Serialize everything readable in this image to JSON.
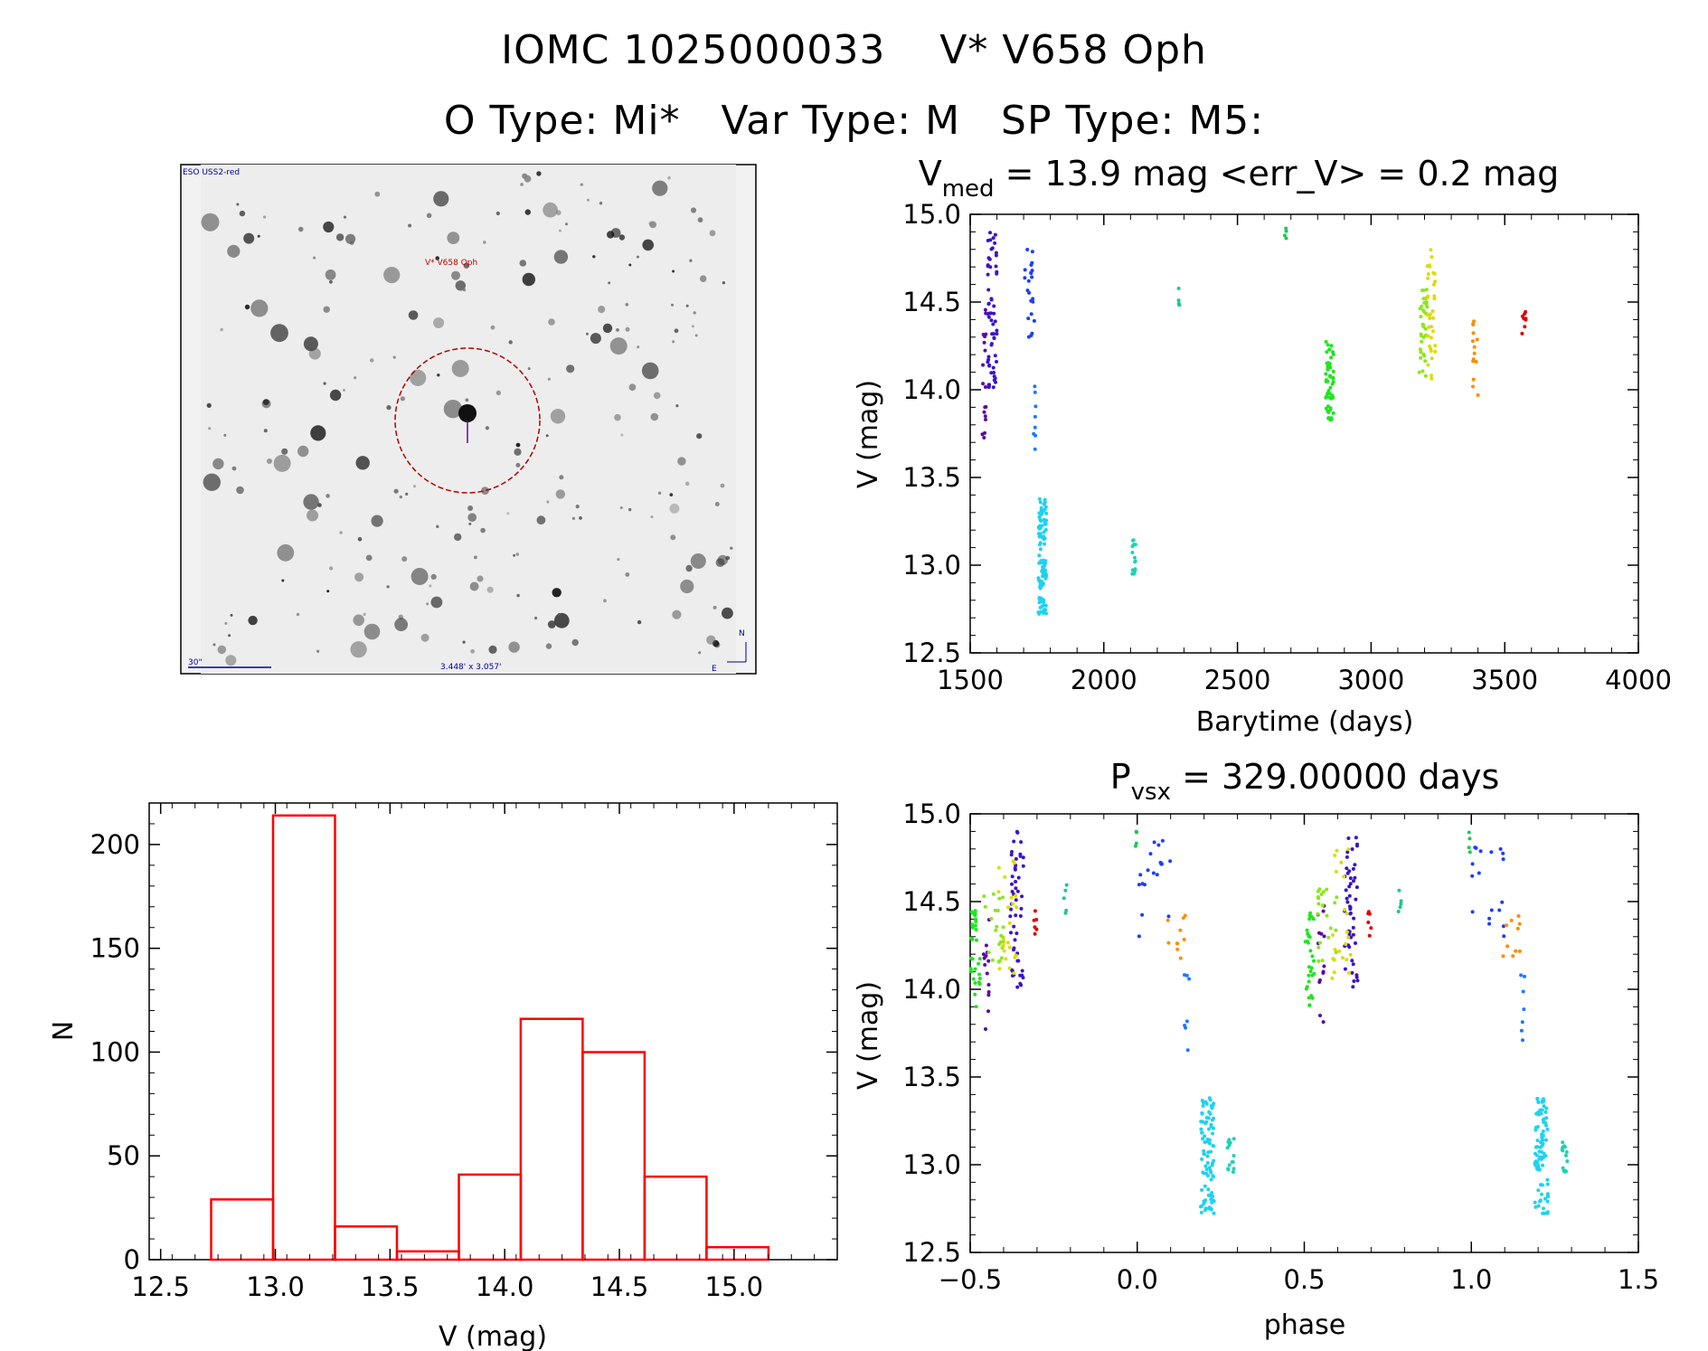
{
  "header": {
    "line1_id": "IOMC 1025000033",
    "line1_name": "V* V658 Oph",
    "line2": "O Type: Mi*   Var Type: M   SP Type: M5:"
  },
  "finder": {
    "survey_label": "ESO USS2-red",
    "target_label": "V* V658 Oph",
    "scale_label": "30\"",
    "fov_label": "3.448' x 3.057'",
    "north_label": "N",
    "east_label": "E"
  },
  "colors": {
    "frame": "#000000",
    "hist": "#ff0000",
    "circle": "#b00000",
    "ticks": "#000000"
  },
  "chart_data": [
    {
      "id": "lightcurve",
      "type": "scatter",
      "title_prefix": "V",
      "title_sub": "med",
      "title_rest": " = 13.9 mag <err_V> = 0.2 mag",
      "xlabel": "Barytime (days)",
      "ylabel": "V (mag)",
      "xlim": [
        1500,
        4000
      ],
      "ylim": [
        15.0,
        12.5
      ],
      "x_ticks": [
        "1500",
        "2000",
        "2500",
        "3000",
        "3500",
        "4000"
      ],
      "y_ticks": [
        "12.5",
        "13.0",
        "13.5",
        "14.0",
        "14.5",
        "15.0"
      ],
      "groups": [
        {
          "color": "#5a0aa0",
          "x_range": [
            1545,
            1560
          ],
          "y_range": [
            13.7,
            14.5
          ],
          "n": 18
        },
        {
          "color": "#3c14c8",
          "x_range": [
            1565,
            1600
          ],
          "y_range": [
            14.0,
            14.9
          ],
          "n": 60
        },
        {
          "color": "#1e3cff",
          "x_range": [
            1700,
            1740
          ],
          "y_range": [
            14.3,
            14.85
          ],
          "n": 22
        },
        {
          "color": "#1e78ff",
          "x_range": [
            1735,
            1745
          ],
          "y_range": [
            13.65,
            14.1
          ],
          "n": 8
        },
        {
          "color": "#1ed2f0",
          "x_range": [
            1755,
            1785
          ],
          "y_range": [
            12.72,
            13.38
          ],
          "n": 110
        },
        {
          "color": "#1ed2b4",
          "x_range": [
            2105,
            2120
          ],
          "y_range": [
            12.95,
            13.15
          ],
          "n": 16
        },
        {
          "color": "#1ec88c",
          "x_range": [
            2280,
            2285
          ],
          "y_range": [
            14.42,
            14.6
          ],
          "n": 5
        },
        {
          "color": "#1ec850",
          "x_range": [
            2675,
            2685
          ],
          "y_range": [
            14.78,
            14.93
          ],
          "n": 4
        },
        {
          "color": "#1ee61e",
          "x_range": [
            2830,
            2860
          ],
          "y_range": [
            13.82,
            14.28
          ],
          "n": 50
        },
        {
          "color": "#8ce61e",
          "x_range": [
            3180,
            3210
          ],
          "y_range": [
            14.05,
            14.6
          ],
          "n": 35
        },
        {
          "color": "#dcdc00",
          "x_range": [
            3210,
            3240
          ],
          "y_range": [
            14.05,
            14.8
          ],
          "n": 35
        },
        {
          "color": "#ff8c00",
          "x_range": [
            3380,
            3400
          ],
          "y_range": [
            13.92,
            14.45
          ],
          "n": 14
        },
        {
          "color": "#e60000",
          "x_range": [
            3565,
            3580
          ],
          "y_range": [
            14.3,
            14.45
          ],
          "n": 8
        }
      ]
    },
    {
      "id": "histogram",
      "type": "bar",
      "xlabel": "V (mag)",
      "ylabel": "N",
      "xlim": [
        12.45,
        15.45
      ],
      "ylim": [
        0,
        220
      ],
      "x_ticks": [
        "12.5",
        "13.0",
        "13.5",
        "14.0",
        "14.5",
        "15.0"
      ],
      "y_ticks": [
        "0",
        "50",
        "100",
        "150",
        "200"
      ],
      "bin_edges": [
        12.72,
        12.99,
        13.26,
        13.53,
        13.8,
        14.07,
        14.34,
        14.61,
        14.88,
        15.15
      ],
      "values": [
        29,
        214,
        16,
        4,
        41,
        116,
        100,
        40,
        6
      ]
    },
    {
      "id": "phased",
      "type": "scatter",
      "title_prefix": "P",
      "title_sub": "vsx",
      "title_rest": " = 329.00000 days",
      "xlabel": "phase",
      "ylabel": "V (mag)",
      "xlim": [
        -0.5,
        1.5
      ],
      "ylim": [
        15.0,
        12.5
      ],
      "x_ticks": [
        "−0.5",
        "0.0",
        "0.5",
        "1.0",
        "1.5"
      ],
      "y_ticks": [
        "12.5",
        "13.0",
        "13.5",
        "14.0",
        "14.5",
        "15.0"
      ],
      "groups": [
        {
          "color": "#5a0aa0",
          "x_range": [
            -0.46,
            -0.44
          ],
          "y_range": [
            13.7,
            14.5
          ],
          "n": 14
        },
        {
          "color": "#3c14c8",
          "x_range": [
            -0.38,
            -0.34
          ],
          "y_range": [
            14.0,
            14.9
          ],
          "n": 50
        },
        {
          "color": "#1e3cff",
          "x_range": [
            0.0,
            0.1
          ],
          "y_range": [
            14.3,
            14.85
          ],
          "n": 18
        },
        {
          "color": "#1e78ff",
          "x_range": [
            0.14,
            0.16
          ],
          "y_range": [
            13.65,
            14.1
          ],
          "n": 7
        },
        {
          "color": "#1ed2f0",
          "x_range": [
            0.19,
            0.23
          ],
          "y_range": [
            12.72,
            13.38
          ],
          "n": 90
        },
        {
          "color": "#1ed2b4",
          "x_range": [
            0.27,
            0.29
          ],
          "y_range": [
            12.95,
            13.15
          ],
          "n": 14
        },
        {
          "color": "#1ec88c",
          "x_range": [
            -0.22,
            -0.21
          ],
          "y_range": [
            14.42,
            14.6
          ],
          "n": 5
        },
        {
          "color": "#1ec850",
          "x_range": [
            -0.01,
            0.0
          ],
          "y_range": [
            14.78,
            14.93
          ],
          "n": 4
        },
        {
          "color": "#1ee61e",
          "x_range": [
            -0.5,
            -0.47
          ],
          "y_range": [
            13.9,
            14.45
          ],
          "n": 30
        },
        {
          "color": "#8ce61e",
          "x_range": [
            -0.46,
            -0.4
          ],
          "y_range": [
            14.1,
            14.6
          ],
          "n": 22
        },
        {
          "color": "#dcdc00",
          "x_range": [
            -0.42,
            -0.36
          ],
          "y_range": [
            14.05,
            14.8
          ],
          "n": 22
        },
        {
          "color": "#ff8c00",
          "x_range": [
            0.09,
            0.15
          ],
          "y_range": [
            14.15,
            14.45
          ],
          "n": 10
        },
        {
          "color": "#e60000",
          "x_range": [
            -0.31,
            -0.3
          ],
          "y_range": [
            14.3,
            14.45
          ],
          "n": 6
        }
      ]
    }
  ]
}
